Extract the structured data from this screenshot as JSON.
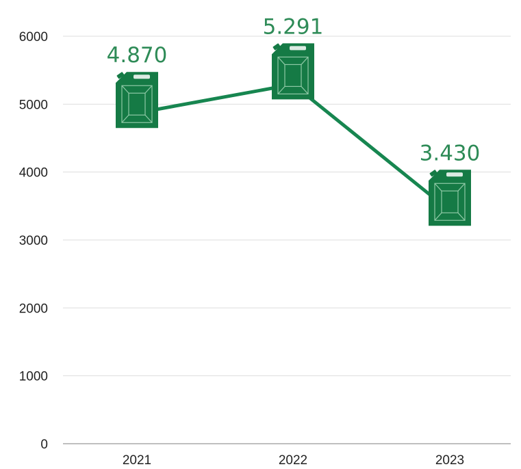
{
  "chart_data": {
    "type": "line",
    "title": "",
    "xlabel": "",
    "ylabel": "",
    "categories": [
      "2021",
      "2022",
      "2023"
    ],
    "values": [
      4870,
      5291,
      3430
    ],
    "data_labels": [
      "4.870",
      "5.291",
      "3.430"
    ],
    "ylim": [
      0,
      6000
    ],
    "yticks": [
      0,
      1000,
      2000,
      3000,
      4000,
      5000,
      6000
    ],
    "ytick_labels": [
      "0",
      "1000",
      "2000",
      "3000",
      "4000",
      "5000",
      "6000"
    ],
    "grid": true,
    "legend": "none",
    "marker": "jerrycan-icon"
  },
  "colors": {
    "line": "#178650",
    "marker_fill": "#157a45",
    "marker_detail": "#8fc9a6",
    "label": "#2e8b57",
    "grid": "#dddddd",
    "axis": "#999999"
  }
}
